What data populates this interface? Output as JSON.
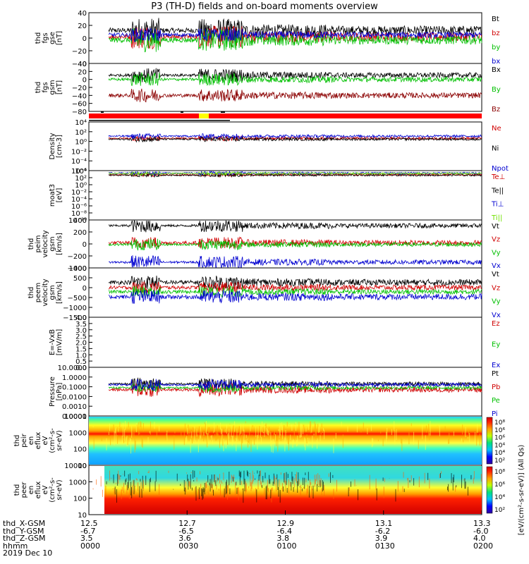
{
  "title": "P3 (TH-D) fields and on-board moments overview",
  "colors": {
    "black": "#000000",
    "red": "#d00000",
    "green": "#00c000",
    "blue": "#0000d0",
    "darkred": "#8b0000",
    "lightgreen": "#70e000",
    "flag_red": "#ff0000",
    "flag_yellow": "#ffff00"
  },
  "x_axis": {
    "tick_rows": [
      {
        "label": "thd_X-GSM",
        "values": [
          "12.5",
          "12.7",
          "12.9",
          "13.1",
          "13.3"
        ]
      },
      {
        "label": "thd_Y-GSM",
        "values": [
          "-6.7",
          "-6.5",
          "-6.4",
          "-6.2",
          "-6.0"
        ]
      },
      {
        "label": "thd_Z-GSM",
        "values": [
          "3.5",
          "3.6",
          "3.8",
          "3.9",
          "4.0"
        ]
      },
      {
        "label": "hhmm",
        "values": [
          "0000",
          "0030",
          "0100",
          "0130",
          "0200"
        ]
      }
    ],
    "date": "2019 Dec 10"
  },
  "chart_data": [
    {
      "type": "line",
      "ylabel": [
        "thd",
        "fgs",
        "gse",
        "[nT]"
      ],
      "yticks": [
        "40",
        "20",
        "0",
        "−20",
        "−40"
      ],
      "ylim": [
        -40,
        40
      ],
      "legend": [
        {
          "name": "Bt",
          "color": "#000000"
        },
        {
          "name": "bz",
          "color": "#d00000"
        },
        {
          "name": "by",
          "color": "#00c000"
        },
        {
          "name": "bx",
          "color": "#0000d0"
        }
      ],
      "series": [
        {
          "name": "Bt",
          "base": 12,
          "amp": 4,
          "burst": 16
        },
        {
          "name": "bz",
          "base": 2,
          "amp": 4,
          "burst": 15
        },
        {
          "name": "by",
          "base": -3,
          "amp": 4,
          "burst": 15
        },
        {
          "name": "bx",
          "base": 5,
          "amp": 3,
          "burst": 8
        }
      ]
    },
    {
      "type": "line",
      "ylabel": [
        "thd",
        "fgs",
        "gsm",
        "[nT]"
      ],
      "yticks": [
        "40",
        "20",
        "0",
        "−20",
        "−40",
        "−60",
        "−80"
      ],
      "ylim": [
        -90,
        45
      ],
      "legend": [
        {
          "name": "Bx",
          "color": "#000000"
        },
        {
          "name": "By",
          "color": "#00c000"
        },
        {
          "name": "Bz",
          "color": "#8b0000"
        }
      ],
      "series": [
        {
          "name": "Bx",
          "base": 12,
          "amp": 4,
          "burst": 16
        },
        {
          "name": "By",
          "base": 0,
          "amp": 4,
          "burst": 15
        },
        {
          "name": "Bz",
          "base": -45,
          "amp": 5,
          "burst": 14
        }
      ]
    },
    {
      "type": "line",
      "ylabel": [
        "Density",
        "[cm-3]"
      ],
      "yticks": [
        "10⁴",
        "10²",
        "10⁰",
        "10⁻²",
        "10⁻⁴",
        "10⁻⁶"
      ],
      "ylim": [
        -7,
        4
      ],
      "log": true,
      "legend": [
        {
          "name": "Ne",
          "color": "#d00000"
        },
        {
          "name": "Ni",
          "color": "#000000"
        },
        {
          "name": "Npot",
          "color": "#0000d0"
        }
      ],
      "series": [
        {
          "name": "Ne",
          "base": 0.3,
          "amp": 0.2,
          "burst": 0.4
        },
        {
          "name": "Ni",
          "base": 0.1,
          "amp": 0.2,
          "burst": 0.4
        },
        {
          "name": "Npot",
          "base": 0.8,
          "amp": 0.2,
          "burst": 0.4
        }
      ]
    },
    {
      "type": "line",
      "ylabel": [
        "moat3",
        "[eV]"
      ],
      "yticks": [
        "10⁴",
        "10²",
        "10⁰",
        "10⁻²",
        "10⁻⁴",
        "10⁻⁶",
        "10⁻⁸",
        "10⁻¹⁰"
      ],
      "ylim": [
        -10,
        4
      ],
      "log": true,
      "legend": [
        {
          "name": "Te⊥",
          "color": "#d00000"
        },
        {
          "name": "Te||",
          "color": "#000000"
        },
        {
          "name": "Ti⊥",
          "color": "#0000d0"
        },
        {
          "name": "Ti||",
          "color": "#70e000"
        }
      ],
      "series": [
        {
          "name": "Te⊥",
          "base": 2.8,
          "amp": 0.2,
          "burst": 0.3
        },
        {
          "name": "Te||",
          "base": 2.7,
          "amp": 0.2,
          "burst": 0.3
        },
        {
          "name": "Ti⊥",
          "base": 3.3,
          "amp": 0.2,
          "burst": 0.3
        },
        {
          "name": "Ti||",
          "base": 3.2,
          "amp": 0.2,
          "burst": 0.3
        }
      ]
    },
    {
      "type": "line",
      "ylabel": [
        "thd",
        "peim",
        "velocity",
        "gsm",
        "[km/s]"
      ],
      "yticks": [
        "400",
        "200",
        "0",
        "−200",
        "−400"
      ],
      "ylim": [
        -420,
        420
      ],
      "legend": [
        {
          "name": "Vt",
          "color": "#000000"
        },
        {
          "name": "Vz",
          "color": "#d00000"
        },
        {
          "name": "Vy",
          "color": "#00c000"
        },
        {
          "name": "Vx",
          "color": "#0000d0"
        }
      ],
      "series": [
        {
          "name": "Vt",
          "base": 320,
          "amp": 20,
          "burst": 100
        },
        {
          "name": "Vz",
          "base": 20,
          "amp": 30,
          "burst": 80
        },
        {
          "name": "Vy",
          "base": -10,
          "amp": 20,
          "burst": 80
        },
        {
          "name": "Vx",
          "base": -320,
          "amp": 20,
          "burst": 100
        }
      ]
    },
    {
      "type": "line",
      "ylabel": [
        "thd",
        "peem",
        "velocity",
        "gsm",
        "[km/s]"
      ],
      "yticks": [
        "1000",
        "500",
        "0",
        "−500",
        "−1000",
        "−1500"
      ],
      "ylim": [
        -1600,
        1300
      ],
      "legend": [
        {
          "name": "Vt",
          "color": "#000000"
        },
        {
          "name": "Vz",
          "color": "#d00000"
        },
        {
          "name": "Vy",
          "color": "#00c000"
        },
        {
          "name": "Vx",
          "color": "#0000d0"
        }
      ],
      "series": [
        {
          "name": "Vt",
          "base": 450,
          "amp": 120,
          "burst": 300
        },
        {
          "name": "Vz",
          "base": 150,
          "amp": 100,
          "burst": 250
        },
        {
          "name": "Vy",
          "base": -100,
          "amp": 100,
          "burst": 250
        },
        {
          "name": "Vx",
          "base": -400,
          "amp": 120,
          "burst": 300
        }
      ]
    },
    {
      "type": "line",
      "ylabel": [
        "E=-VxB",
        "[mV/m]"
      ],
      "yticks": [
        "4.0",
        "3.5",
        "3.0",
        "2.5",
        "2.0",
        "1.5",
        "1.0",
        "0.5",
        "0.0"
      ],
      "ylim": [
        0,
        4
      ],
      "legend": [
        {
          "name": "Ez",
          "color": "#d00000"
        },
        {
          "name": "Ey",
          "color": "#00c000"
        },
        {
          "name": "Ex",
          "color": "#0000d0"
        }
      ],
      "series": []
    },
    {
      "type": "line",
      "ylabel": [
        "Pressure",
        "[nPa]"
      ],
      "yticks": [
        "10.0000",
        "1.0000",
        "0.1000",
        "0.0100",
        "0.0010",
        "0.0001"
      ],
      "ylim": [
        -4,
        1
      ],
      "log": true,
      "legend": [
        {
          "name": "Pt",
          "color": "#000000"
        },
        {
          "name": "Pb",
          "color": "#d00000"
        },
        {
          "name": "Pe",
          "color": "#00c000"
        },
        {
          "name": "Pi",
          "color": "#0000d0"
        }
      ],
      "series": [
        {
          "name": "Pt",
          "base": -0.7,
          "amp": 0.1,
          "burst": 0.5
        },
        {
          "name": "Pb",
          "base": -1.3,
          "amp": 0.15,
          "burst": 0.6
        },
        {
          "name": "Pe",
          "base": -1.1,
          "amp": 0.1,
          "burst": 0.4
        },
        {
          "name": "Pi",
          "base": -0.8,
          "amp": 0.1,
          "burst": 0.5
        }
      ]
    },
    {
      "type": "heatmap",
      "ylabel": [
        "thd",
        "peir",
        "en",
        "eflux",
        "eV",
        "(cm²-s-",
        "sr-eV)"
      ],
      "yticks": [
        "10000",
        "1000",
        "100",
        "10"
      ],
      "ylim": [
        10,
        20000
      ],
      "log": true,
      "colorbar": {
        "ticks": [
          "10⁸",
          "10⁶",
          "10⁶",
          "10⁴",
          "10⁴",
          "10²"
        ],
        "label": "[eV/(cm²-s-sr-eV)] (All Qs)"
      }
    },
    {
      "type": "heatmap",
      "ylabel": [
        "thd",
        "peer",
        "en",
        "eflux",
        "eV",
        "(cm²-s-",
        "sr-eV)"
      ],
      "yticks": [
        "10000",
        "1000",
        "100",
        "10"
      ],
      "ylim": [
        10,
        20000
      ],
      "log": true,
      "colorbar": {
        "ticks": [
          "10⁸",
          "10⁶",
          "10⁴",
          "10²"
        ],
        "label": "[eV/(cm²-s-sr-eV)] (All Qs)"
      }
    }
  ]
}
